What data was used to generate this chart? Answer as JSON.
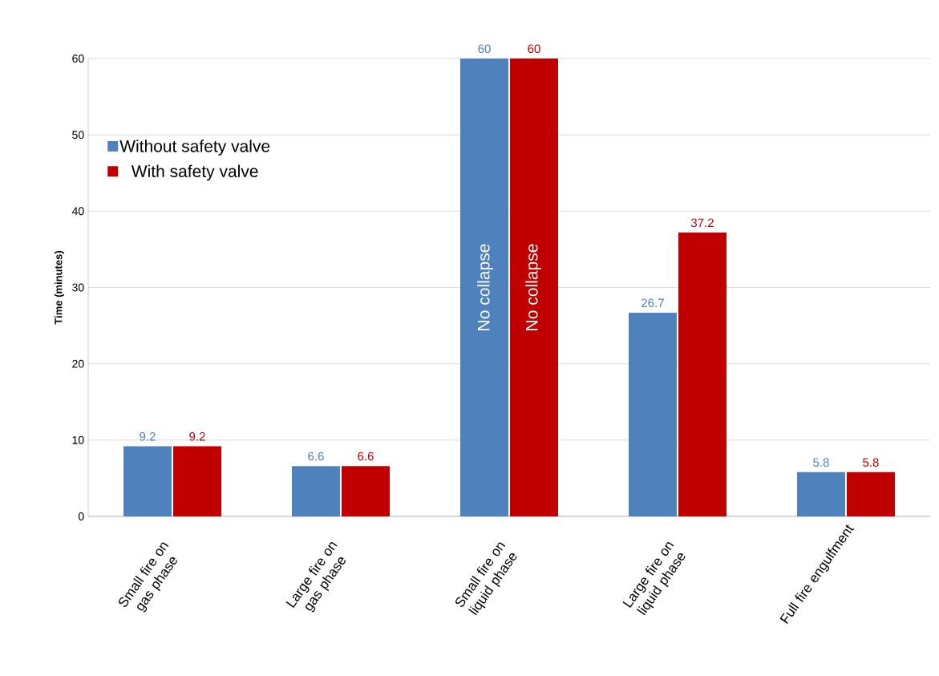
{
  "chart_data": {
    "type": "bar",
    "ylabel": "Time (minutes)",
    "categories": [
      "Small fire on gas phase",
      "Large fire on gas phase",
      "Small fire on liquid phase",
      "Large fire on liquid phase",
      "Full fire engulfment"
    ],
    "series": [
      {
        "name": "Without safety valve",
        "color": "#4f81bd",
        "values": [
          9.2,
          6.6,
          60,
          26.7,
          5.8
        ]
      },
      {
        "name": "With safety valve",
        "color": "#c00000",
        "values": [
          9.2,
          6.6,
          60,
          37.2,
          5.8
        ]
      }
    ],
    "ylim": [
      0,
      60
    ],
    "yticks": [
      0,
      10,
      20,
      30,
      40,
      50,
      60
    ],
    "grid": "y",
    "legend": "top left",
    "data_labels": true,
    "annotations": [
      {
        "text": "No collapse",
        "x": "Small fire on liquid phase",
        "y": 30
      },
      {
        "text": "No collapse",
        "x": "Small fire on liquid phase",
        "y": 30
      }
    ]
  }
}
